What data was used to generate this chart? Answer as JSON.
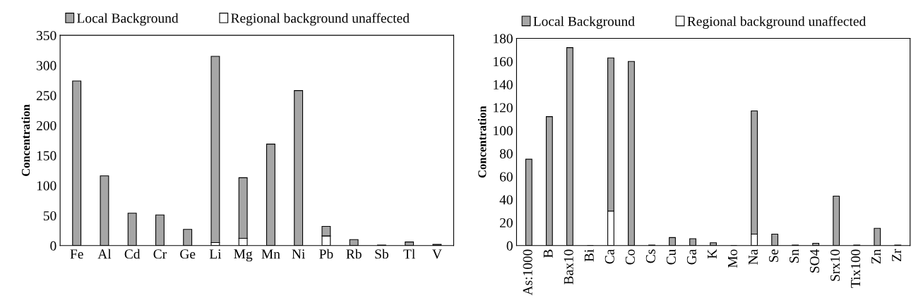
{
  "chart_data": [
    {
      "type": "bar",
      "stacked": true,
      "ylabel": "Concentration",
      "categories": [
        "Fe",
        "Al",
        "Cd",
        "Cr",
        "Ge",
        "Li",
        "Mg",
        "Mn",
        "Ni",
        "Pb",
        "Rb",
        "Sb",
        "Tl",
        "V"
      ],
      "series": [
        {
          "name": "Regional background unaffected",
          "color": "#ffffff",
          "values": [
            0,
            0,
            0,
            0,
            0,
            5,
            12,
            0,
            0,
            16,
            0,
            0,
            0,
            0
          ]
        },
        {
          "name": "Local Background",
          "color": "#a6a6a6",
          "values": [
            274,
            116,
            54,
            51,
            27,
            310,
            101,
            169,
            258,
            16,
            10,
            1,
            6,
            2
          ]
        }
      ],
      "ylim": [
        0,
        350
      ],
      "yticks": [
        0,
        50,
        100,
        150,
        200,
        250,
        300,
        350
      ],
      "grid": false,
      "legend": "top"
    },
    {
      "type": "bar",
      "stacked": true,
      "ylabel": "Concentration",
      "categories": [
        "As:1000",
        "B",
        "Bax10",
        "Bi",
        "Ca",
        "Co",
        "Cs",
        "Cu",
        "Ga",
        "K",
        "Mo",
        "Na",
        "Se",
        "Sn",
        "SO4",
        "Srx10",
        "Tix100",
        "Zn",
        "Zr"
      ],
      "series": [
        {
          "name": "Regional background unaffected",
          "color": "#ffffff",
          "values": [
            0,
            0,
            0,
            0,
            30,
            0,
            0,
            0,
            0,
            null,
            0,
            10,
            0,
            0,
            0,
            null,
            0,
            null,
            0
          ]
        },
        {
          "name": "Local Background",
          "color": "#a6a6a6",
          "values": [
            75,
            112,
            172,
            0,
            133,
            160,
            0.5,
            7,
            6,
            2.5,
            0,
            107,
            10,
            0.5,
            2,
            43,
            0.5,
            15,
            0.5
          ]
        }
      ],
      "ylim": [
        0,
        180
      ],
      "yticks": [
        0,
        20,
        40,
        60,
        80,
        100,
        120,
        140,
        160,
        180
      ],
      "grid": false,
      "legend": "top"
    }
  ]
}
